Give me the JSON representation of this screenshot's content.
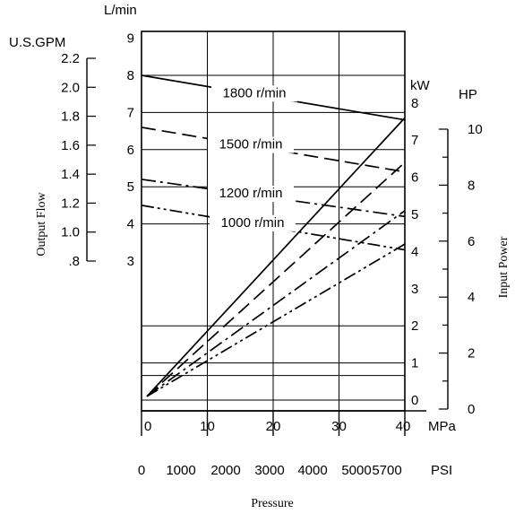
{
  "chart_data": {
    "type": "line",
    "xlabel": "Pressure",
    "x_unit": "MPa",
    "x_psi_unit": "PSI",
    "x_ticks": [
      "0",
      "10",
      "20",
      "30",
      "40"
    ],
    "x_psi_ticks": [
      "0",
      "1000",
      "2000",
      "3000",
      "4000",
      "5000",
      "5700"
    ],
    "flow_unit": "L/min",
    "flow_ticks": [
      "3",
      "4",
      "5",
      "6",
      "7",
      "8",
      "9"
    ],
    "gpm_unit": "U.S.GPM",
    "gpm_ticks": [
      "2.2",
      "2.0",
      "1.8",
      "1.6",
      "1.4",
      "1.2",
      "1.0",
      ".8"
    ],
    "left_axis_label": "Output Flow",
    "kw_unit": "kW",
    "kw_ticks": [
      "0",
      "1",
      "2",
      "3",
      "4",
      "5",
      "6",
      "7",
      "8"
    ],
    "hp_unit": "HP",
    "hp_ticks": [
      "0",
      "2",
      "4",
      "6",
      "8",
      "10"
    ],
    "right_axis_label": "Input Power",
    "flow_series": [
      {
        "name": "1800 r/min",
        "style": "solid",
        "x": [
          0,
          40
        ],
        "y": [
          8.0,
          6.8
        ]
      },
      {
        "name": "1500 r/min",
        "style": "dashed",
        "x": [
          0,
          40
        ],
        "y": [
          6.6,
          5.4
        ]
      },
      {
        "name": "1200 r/min",
        "style": "dashdot",
        "x": [
          0,
          40
        ],
        "y": [
          5.2,
          4.2
        ]
      },
      {
        "name": "1000 r/min",
        "style": "dashdotdot",
        "x": [
          0,
          40
        ],
        "y": [
          4.5,
          3.3
        ]
      }
    ],
    "power_series": [
      {
        "style": "solid",
        "x": [
          0,
          40
        ],
        "y": [
          0.1,
          7.6
        ]
      },
      {
        "style": "dashed",
        "x": [
          0,
          40
        ],
        "y": [
          0.1,
          6.4
        ]
      },
      {
        "style": "dashdot",
        "x": [
          0,
          40
        ],
        "y": [
          0.1,
          5.1
        ]
      },
      {
        "style": "dashdotdot",
        "x": [
          0,
          40
        ],
        "y": [
          0.1,
          4.2
        ]
      }
    ]
  }
}
